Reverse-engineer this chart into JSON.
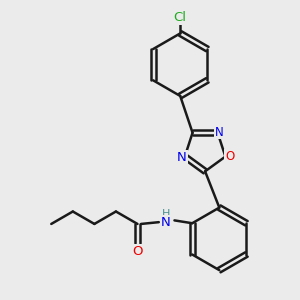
{
  "background_color": "#ebebeb",
  "bond_color": "#1a1a1a",
  "bond_width": 1.8,
  "atom_colors": {
    "Cl": "#22aa22",
    "N": "#0000ee",
    "O": "#ee0000",
    "H": "#4a9090"
  },
  "font_size": 8.5,
  "figsize": [
    3.0,
    3.0
  ],
  "dpi": 100
}
